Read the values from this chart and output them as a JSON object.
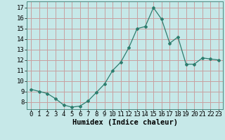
{
  "x": [
    0,
    1,
    2,
    3,
    4,
    5,
    6,
    7,
    8,
    9,
    10,
    11,
    12,
    13,
    14,
    15,
    16,
    17,
    18,
    19,
    20,
    21,
    22,
    23
  ],
  "y": [
    9.2,
    9.0,
    8.8,
    8.3,
    7.7,
    7.5,
    7.6,
    8.1,
    8.9,
    9.7,
    11.0,
    11.8,
    13.2,
    15.0,
    15.2,
    17.0,
    15.9,
    13.6,
    14.2,
    11.6,
    11.6,
    12.2,
    12.1,
    12.0
  ],
  "line_color": "#2d7d6e",
  "marker": "D",
  "marker_size": 2.0,
  "bg_color": "#c6e8e8",
  "grid_color": "#c8a0a0",
  "xlabel": "Humidex (Indice chaleur)",
  "xlim": [
    -0.5,
    23.5
  ],
  "ylim": [
    7.3,
    17.6
  ],
  "yticks": [
    8,
    9,
    10,
    11,
    12,
    13,
    14,
    15,
    16,
    17
  ],
  "xticks": [
    0,
    1,
    2,
    3,
    4,
    5,
    6,
    7,
    8,
    9,
    10,
    11,
    12,
    13,
    14,
    15,
    16,
    17,
    18,
    19,
    20,
    21,
    22,
    23
  ],
  "label_fontsize": 7.5,
  "tick_fontsize": 6.5
}
